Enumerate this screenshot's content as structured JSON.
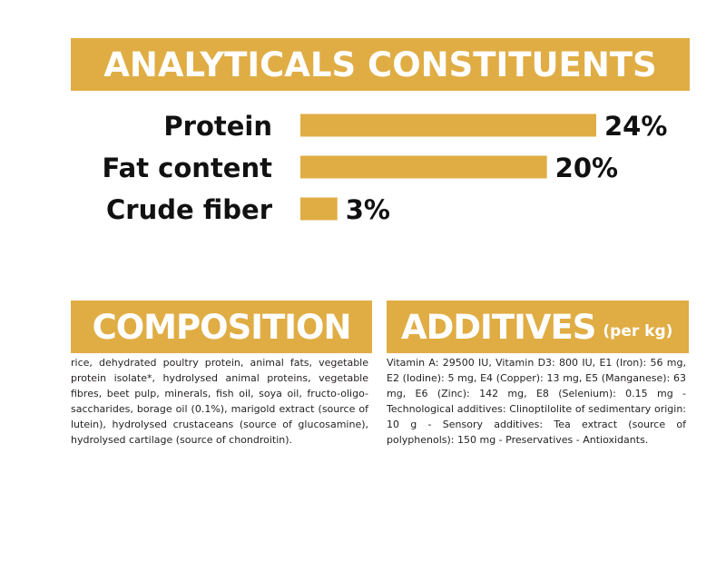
{
  "headings": {
    "analytics": "ANALYTICALS CONSTITUENTS",
    "composition": "COMPOSITION",
    "additives": "ADDITIVES",
    "additives_unit": "(per kg)"
  },
  "chart_data": {
    "type": "bar",
    "orientation": "horizontal",
    "categories": [
      "Protein",
      "Fat content",
      "Crude fiber"
    ],
    "values": [
      24,
      20,
      3
    ],
    "value_labels": [
      "24%",
      "20%",
      "3%"
    ],
    "xlim": [
      0,
      24
    ],
    "grid": false,
    "color": "#e0ad45"
  },
  "composition_text": "rice, dehydrated poultry protein, animal fats, vegetable protein isolate*, hydrolysed animal proteins, vegetable fibres, beet pulp, minerals, fish oil, soya oil, fructo-oligo-saccharides, borage oil (0.1%), marigold extract (source of lutein), hydrolysed crustaceans (source of glucosamine), hydrolysed cartilage (source of chondroitin).",
  "additives_text": "Vitamin A: 29500 IU, Vitamin D3: 800 IU, E1 (Iron): 56 mg, E2 (Iodine): 5 mg, E4 (Copper): 13 mg, E5 (Manganese): 63 mg, E6 (Zinc): 142 mg, E8 (Selenium): 0.15 mg - Technological additives: Clinoptilolite of sedimentary origin: 10 g - Sensory additives: Tea extract (source of polyphenols): 150 mg - Preservatives - Antioxidants."
}
